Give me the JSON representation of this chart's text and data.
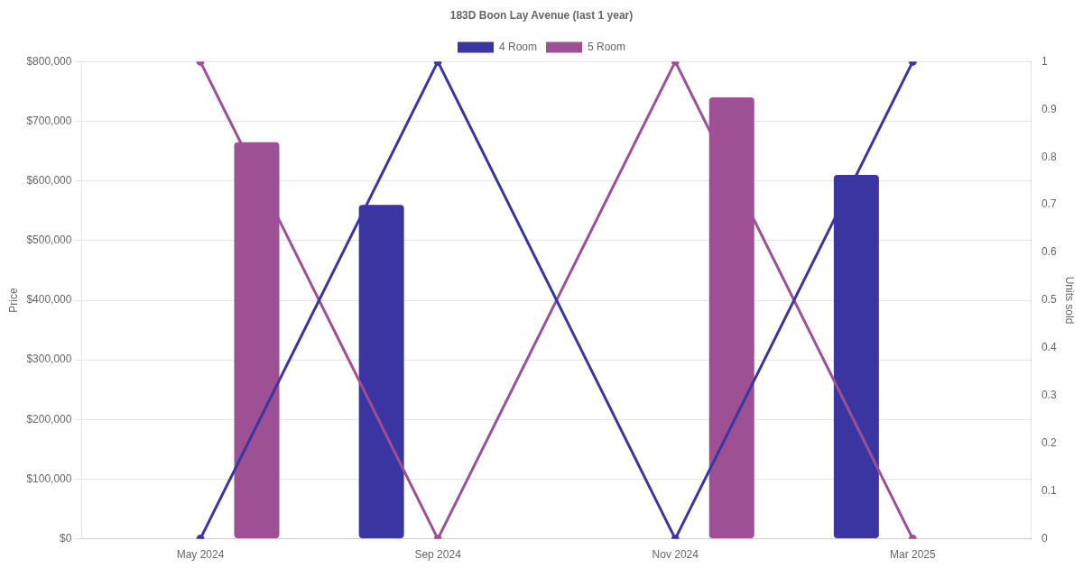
{
  "chart_data": {
    "type": "bar",
    "title": "183D Boon Lay Avenue (last 1 year)",
    "ylabel": "Price",
    "y2label": "Units sold",
    "categories": [
      "May 2024",
      "Sep 2024",
      "Nov 2024",
      "Mar 2025"
    ],
    "series": [
      {
        "name": "4 Room",
        "color": "#3a35a0",
        "values": [
          null,
          560000,
          null,
          610000
        ]
      },
      {
        "name": "5 Room",
        "color": "#9e5095",
        "values": [
          665000,
          null,
          740000,
          null
        ]
      },
      {
        "type": "line",
        "axis": "y2",
        "color": "#3a35a0",
        "values": [
          0,
          1,
          0,
          1
        ]
      },
      {
        "type": "line",
        "axis": "y2",
        "color": "#9e5095",
        "values": [
          1,
          0,
          1,
          0
        ]
      }
    ],
    "ylim": [
      0,
      800000
    ],
    "yticks": [
      {
        "value": 0,
        "label": "$0"
      },
      {
        "value": 100000,
        "label": "$100,000"
      },
      {
        "value": 200000,
        "label": "$200,000"
      },
      {
        "value": 300000,
        "label": "$300,000"
      },
      {
        "value": 400000,
        "label": "$400,000"
      },
      {
        "value": 500000,
        "label": "$500,000"
      },
      {
        "value": 600000,
        "label": "$600,000"
      },
      {
        "value": 700000,
        "label": "$700,000"
      },
      {
        "value": 800000,
        "label": "$800,000"
      }
    ],
    "y2lim": [
      0,
      1
    ],
    "y2ticks": [
      0,
      0.1,
      0.2,
      0.3,
      0.4,
      0.5,
      0.6,
      0.7,
      0.8,
      0.9,
      1
    ],
    "grid": "y",
    "legend": "top",
    "marker": "circle",
    "line_style": "solid"
  }
}
